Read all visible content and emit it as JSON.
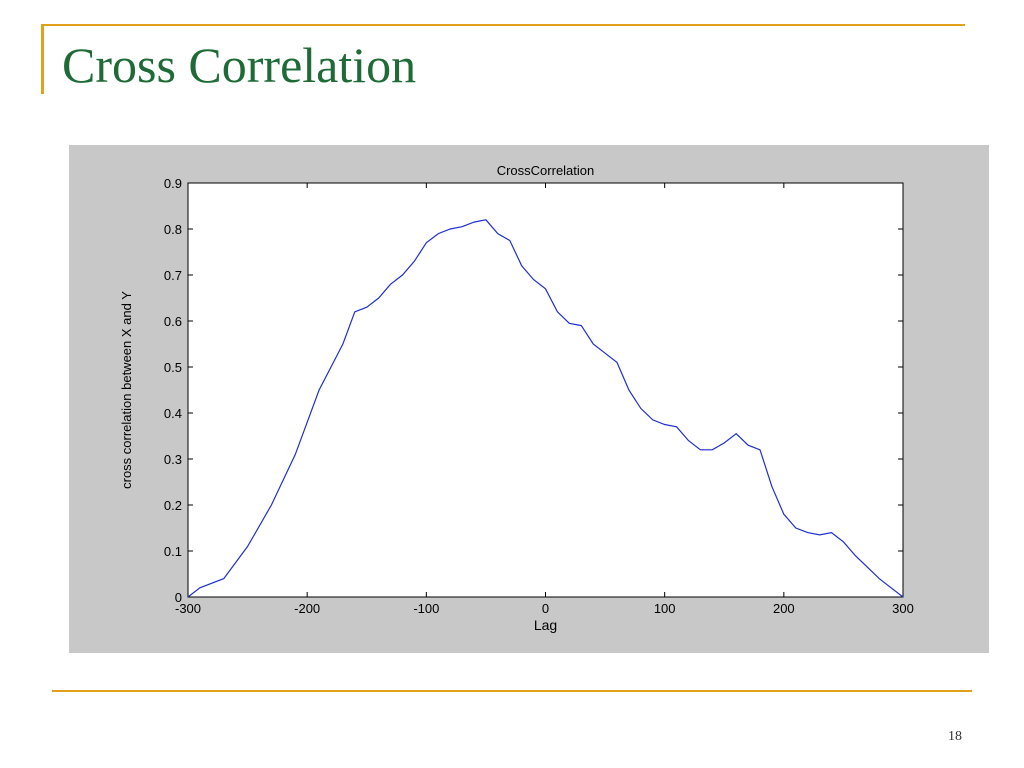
{
  "slide": {
    "title": "Cross Correlation",
    "page_number": "18"
  },
  "colors": {
    "title": "#1e6b37",
    "accent": "#e0a21a",
    "figure_bg": "#c8c8c8",
    "line": "#1f2fd0"
  },
  "chart_data": {
    "type": "line",
    "title": "CrossCorrelation",
    "xlabel": "Lag",
    "ylabel": "cross correlation between X and Y",
    "xlim": [
      -300,
      300
    ],
    "ylim": [
      0,
      0.9
    ],
    "xticks": [
      -300,
      -200,
      -100,
      0,
      100,
      200,
      300
    ],
    "yticks": [
      0,
      0.1,
      0.2,
      0.3,
      0.4,
      0.5,
      0.6,
      0.7,
      0.8,
      0.9
    ],
    "grid": false,
    "legend": "none",
    "series": [
      {
        "x": [
          -300,
          -290,
          -270,
          -250,
          -230,
          -210,
          -190,
          -180,
          -170,
          -160,
          -150,
          -140,
          -130,
          -120,
          -110,
          -100,
          -90,
          -80,
          -70,
          -60,
          -50,
          -40,
          -30,
          -20,
          -10,
          0,
          10,
          20,
          30,
          40,
          50,
          60,
          70,
          80,
          90,
          100,
          110,
          120,
          130,
          140,
          150,
          160,
          170,
          180,
          190,
          200,
          210,
          220,
          230,
          240,
          250,
          260,
          270,
          280,
          290,
          300
        ],
        "y": [
          0.0,
          0.02,
          0.04,
          0.11,
          0.2,
          0.31,
          0.45,
          0.5,
          0.55,
          0.62,
          0.63,
          0.65,
          0.68,
          0.7,
          0.73,
          0.77,
          0.79,
          0.8,
          0.805,
          0.815,
          0.82,
          0.79,
          0.775,
          0.72,
          0.69,
          0.67,
          0.62,
          0.595,
          0.59,
          0.55,
          0.53,
          0.51,
          0.45,
          0.41,
          0.385,
          0.375,
          0.37,
          0.34,
          0.32,
          0.32,
          0.335,
          0.355,
          0.33,
          0.32,
          0.24,
          0.18,
          0.15,
          0.14,
          0.135,
          0.14,
          0.12,
          0.09,
          0.065,
          0.04,
          0.02,
          0.0
        ]
      }
    ]
  }
}
